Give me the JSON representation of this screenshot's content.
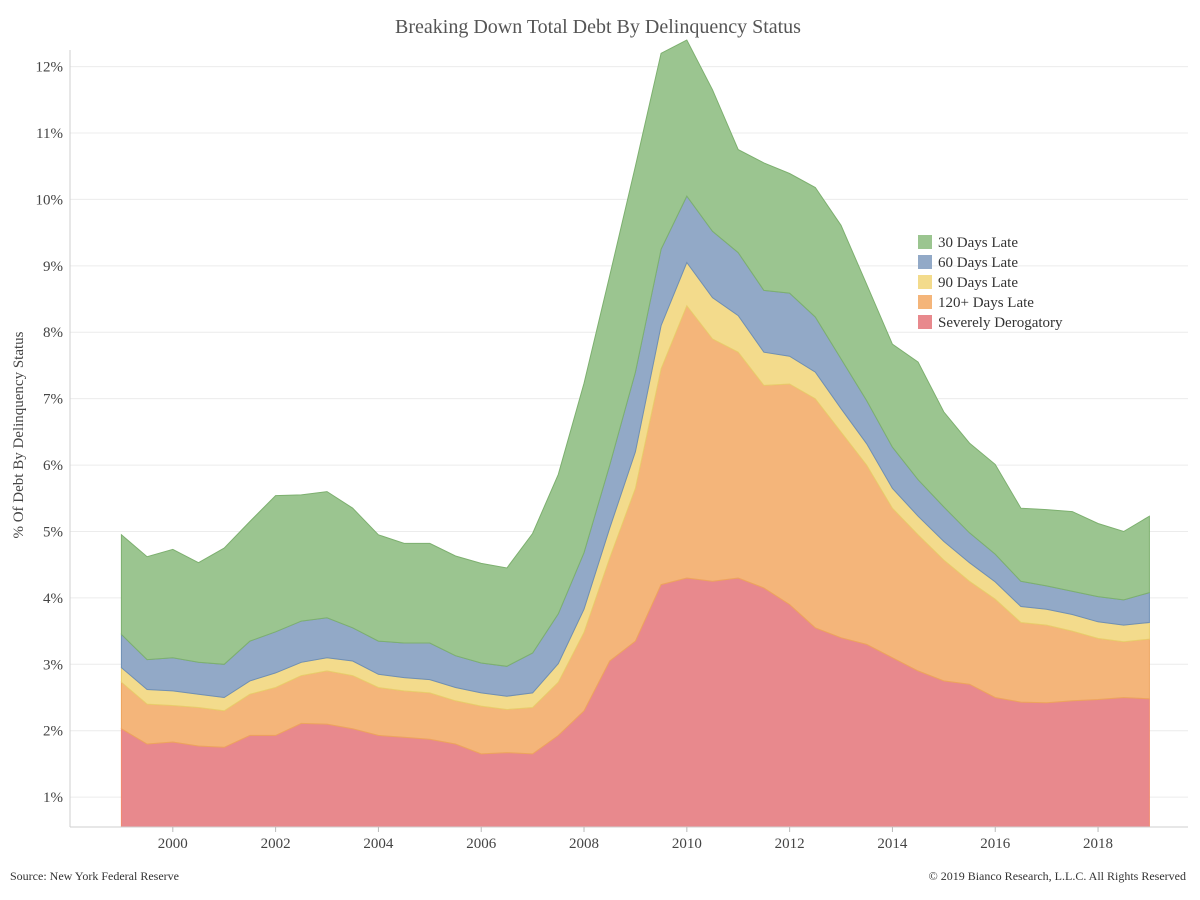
{
  "footer": {
    "source": "Source: New York Federal Reserve",
    "copyright": "© 2019 Bianco Research, L.L.C. All Rights Reserved"
  },
  "chart_data": {
    "type": "area",
    "stacked": true,
    "title": "Breaking Down Total Debt By Delinquency Status",
    "xlabel": "",
    "ylabel": "% Of Debt By Delinquency Status",
    "xlim": [
      1998.0,
      2019.75
    ],
    "ylim": [
      0.55,
      12.25
    ],
    "x_ticks": [
      2000,
      2002,
      2004,
      2006,
      2008,
      2010,
      2012,
      2014,
      2016,
      2018
    ],
    "y_ticks": [
      1,
      2,
      3,
      4,
      5,
      6,
      7,
      8,
      9,
      10,
      11,
      12
    ],
    "y_tick_labels": [
      "1%",
      "2%",
      "3%",
      "4%",
      "5%",
      "6%",
      "7%",
      "8%",
      "9%",
      "10%",
      "11%",
      "12%"
    ],
    "grid": true,
    "legend_position": "right, upper middle",
    "x": [
      1999.0,
      1999.5,
      2000.0,
      2000.5,
      2001.0,
      2001.5,
      2002.0,
      2002.5,
      2003.0,
      2003.5,
      2004.0,
      2004.5,
      2005.0,
      2005.5,
      2006.0,
      2006.5,
      2007.0,
      2007.5,
      2008.0,
      2008.5,
      2009.0,
      2009.5,
      2010.0,
      2010.5,
      2011.0,
      2011.5,
      2012.0,
      2012.5,
      2013.0,
      2013.5,
      2014.0,
      2014.5,
      2015.0,
      2015.5,
      2016.0,
      2016.5,
      2017.0,
      2017.5,
      2018.0,
      2018.5,
      2019.0
    ],
    "series": [
      {
        "name": "Severely Derogatory",
        "color": "#E8898D",
        "edge": "#F08A6E",
        "values": [
          1.48,
          1.25,
          1.28,
          1.22,
          1.2,
          1.38,
          1.38,
          1.56,
          1.55,
          1.48,
          1.38,
          1.35,
          1.32,
          1.25,
          1.1,
          1.12,
          1.1,
          1.38,
          1.75,
          2.5,
          2.8,
          3.65,
          3.75,
          3.7,
          3.75,
          3.6,
          3.35,
          3.0,
          2.85,
          2.75,
          2.55,
          2.35,
          2.2,
          2.15,
          1.95,
          1.88,
          1.87,
          1.9,
          1.92,
          1.95,
          1.93
        ]
      },
      {
        "name": "120+ Days Late",
        "color": "#F4B57A",
        "edge": "#EDA45E",
        "values": [
          0.7,
          0.6,
          0.55,
          0.58,
          0.55,
          0.62,
          0.72,
          0.72,
          0.8,
          0.8,
          0.72,
          0.7,
          0.7,
          0.65,
          0.72,
          0.65,
          0.7,
          0.8,
          1.18,
          1.55,
          2.3,
          3.25,
          4.1,
          3.65,
          3.4,
          3.05,
          3.32,
          3.45,
          3.1,
          2.7,
          2.25,
          2.05,
          1.82,
          1.55,
          1.48,
          1.2,
          1.17,
          1.05,
          0.92,
          0.84,
          0.9
        ]
      },
      {
        "name": "90 Days Late",
        "color": "#F3DB8C",
        "edge": "#E9CD6C",
        "values": [
          0.22,
          0.22,
          0.22,
          0.2,
          0.2,
          0.2,
          0.22,
          0.2,
          0.2,
          0.22,
          0.2,
          0.2,
          0.2,
          0.2,
          0.2,
          0.2,
          0.22,
          0.28,
          0.35,
          0.45,
          0.55,
          0.65,
          0.65,
          0.62,
          0.55,
          0.5,
          0.42,
          0.4,
          0.35,
          0.32,
          0.3,
          0.28,
          0.28,
          0.28,
          0.26,
          0.24,
          0.24,
          0.25,
          0.25,
          0.25,
          0.25
        ]
      },
      {
        "name": "60 Days Late",
        "color": "#92A9C7",
        "edge": "#6F8FB4",
        "values": [
          0.5,
          0.45,
          0.5,
          0.48,
          0.5,
          0.6,
          0.62,
          0.62,
          0.6,
          0.5,
          0.5,
          0.52,
          0.55,
          0.48,
          0.45,
          0.45,
          0.6,
          0.75,
          0.85,
          0.95,
          1.2,
          1.15,
          1.0,
          1.0,
          0.95,
          0.93,
          0.95,
          0.83,
          0.75,
          0.65,
          0.62,
          0.55,
          0.52,
          0.45,
          0.42,
          0.38,
          0.35,
          0.35,
          0.38,
          0.38,
          0.45
        ]
      },
      {
        "name": "30 Days Late",
        "color": "#9BC590",
        "edge": "#7DB06F",
        "values": [
          1.5,
          1.55,
          1.63,
          1.5,
          1.75,
          1.8,
          2.05,
          1.9,
          1.9,
          1.8,
          1.6,
          1.5,
          1.5,
          1.5,
          1.5,
          1.48,
          1.8,
          2.1,
          2.55,
          2.85,
          3.1,
          2.95,
          2.35,
          2.13,
          1.55,
          1.92,
          1.8,
          1.95,
          2.01,
          1.75,
          1.55,
          1.77,
          1.43,
          1.35,
          1.35,
          1.1,
          1.15,
          1.2,
          1.1,
          1.03,
          1.15
        ]
      }
    ]
  }
}
